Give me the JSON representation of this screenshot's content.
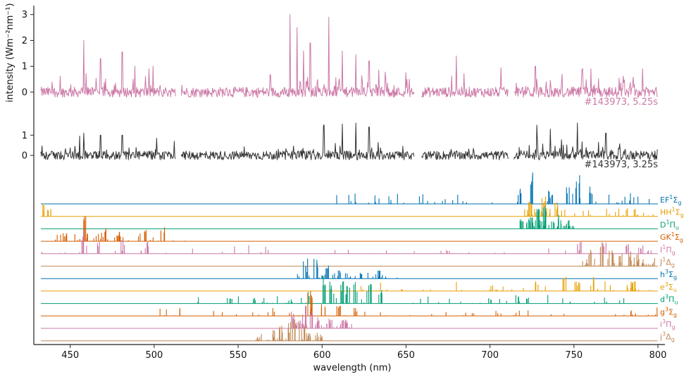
{
  "chart_data": {
    "type": "line",
    "title": "",
    "xlabel": "wavelength (nm)",
    "ylabel": "intensity (Wm⁻²nm⁻¹)",
    "xlim": [
      432,
      805
    ],
    "x_ticks": [
      450,
      500,
      550,
      600,
      650,
      700,
      750,
      800
    ],
    "x_tick_labels": [
      "450",
      "500",
      "550",
      "600",
      "650",
      "700",
      "750",
      "800"
    ],
    "gaps_nm": [
      [
        513,
        516
      ],
      [
        655,
        659
      ],
      [
        711,
        714
      ]
    ],
    "spectra": [
      {
        "label": "#143973, 5.25s",
        "color": "#CC79A7",
        "ylim": [
          -0.6,
          3.4
        ],
        "y_ticks": [
          0,
          1,
          2,
          3
        ],
        "y_tick_labels": [
          "0",
          "1",
          "2",
          "3"
        ],
        "baseline_noise": 0.18,
        "peaks": [
          {
            "x": 458,
            "y": 2.0
          },
          {
            "x": 468,
            "y": 1.3
          },
          {
            "x": 481,
            "y": 1.55
          },
          {
            "x": 497,
            "y": 0.9
          },
          {
            "x": 581,
            "y": 3.0
          },
          {
            "x": 585,
            "y": 2.5
          },
          {
            "x": 589,
            "y": 1.6
          },
          {
            "x": 593,
            "y": 1.9
          },
          {
            "x": 604,
            "y": 2.9
          },
          {
            "x": 612,
            "y": 1.6
          },
          {
            "x": 620,
            "y": 1.45
          },
          {
            "x": 628,
            "y": 1.2
          },
          {
            "x": 680,
            "y": 1.4
          },
          {
            "x": 727,
            "y": 1.0
          },
          {
            "x": 755,
            "y": 0.9
          },
          {
            "x": 760,
            "y": 0.9
          },
          {
            "x": 791,
            "y": 0.9
          }
        ]
      },
      {
        "label": "#143973, 3.25s",
        "color": "#333333",
        "ylim": [
          -0.6,
          1.6
        ],
        "y_ticks": [
          0,
          1
        ],
        "y_tick_labels": [
          "0",
          "1"
        ],
        "baseline_noise": 0.2,
        "peaks": [
          {
            "x": 458,
            "y": 1.1
          },
          {
            "x": 468,
            "y": 1.0
          },
          {
            "x": 481,
            "y": 1.0
          },
          {
            "x": 601,
            "y": 1.5
          },
          {
            "x": 612,
            "y": 1.55
          },
          {
            "x": 620,
            "y": 1.6
          },
          {
            "x": 628,
            "y": 1.4
          },
          {
            "x": 728,
            "y": 1.5
          },
          {
            "x": 736,
            "y": 1.3
          },
          {
            "x": 752,
            "y": 1.6
          },
          {
            "x": 769,
            "y": 1.1
          }
        ]
      }
    ],
    "bands": [
      {
        "label_base": "EF",
        "sup": "1",
        "greek": "Σ",
        "sub": "g",
        "color": "#0072B2",
        "range": [
          585,
          800
        ],
        "strong": [
          [
            724,
            1.0
          ],
          [
            752,
            1.0
          ],
          [
            746,
            0.6
          ],
          [
            718,
            0.5
          ],
          [
            760,
            0.55
          ],
          [
            736,
            0.45
          ]
        ]
      },
      {
        "label_base": "HH",
        "sup": "1",
        "greek": "Σ",
        "sub": "g",
        "color": "#E69F00",
        "range": [
          720,
          800
        ],
        "strong": [
          [
            433,
            0.5
          ],
          [
            437,
            0.4
          ],
          [
            724,
            0.9
          ],
          [
            732,
            0.8
          ],
          [
            740,
            0.6
          ]
        ]
      },
      {
        "label_base": "D",
        "sup": "1",
        "greek": "Π",
        "sub": "u",
        "color": "#009E73",
        "range": [
          718,
          752
        ],
        "strong": [
          [
            733,
            1.0
          ],
          [
            729,
            0.8
          ],
          [
            724,
            0.6
          ],
          [
            742,
            0.55
          ],
          [
            719,
            0.45
          ]
        ]
      },
      {
        "label_base": "GK",
        "sup": "1",
        "greek": "Σ",
        "sub": "g",
        "color": "#D55E00",
        "range": [
          440,
          520
        ],
        "strong": [
          [
            458,
            1.0
          ],
          [
            471,
            0.6
          ],
          [
            495,
            0.5
          ],
          [
            505,
            0.6
          ],
          [
            479,
            0.4
          ],
          [
            447,
            0.35
          ]
        ]
      },
      {
        "label_base": "I",
        "sup": "1",
        "greek": "Π",
        "sub": "g",
        "color": "#CC79A7",
        "range": [
          433,
          800
        ],
        "strong": [
          [
            458,
            1.0
          ],
          [
            467,
            0.6
          ],
          [
            481,
            0.6
          ],
          [
            497,
            0.5
          ],
          [
            753,
            0.55
          ],
          [
            768,
            0.5
          ],
          [
            782,
            0.5
          ],
          [
            790,
            0.4
          ]
        ]
      },
      {
        "label_base": "J",
        "sup": "1",
        "greek": "Δ",
        "sub": "g",
        "color": "#C18A56",
        "range": [
          755,
          800
        ],
        "strong": [
          [
            766,
            1.0
          ],
          [
            772,
            0.95
          ],
          [
            760,
            0.8
          ],
          [
            778,
            0.7
          ],
          [
            784,
            0.6
          ],
          [
            788,
            0.5
          ]
        ]
      },
      {
        "label_base": "h",
        "sup": "3",
        "greek": "Σ",
        "sub": "g",
        "color": "#0072B2",
        "range": [
          584,
          645
        ],
        "strong": [
          [
            590,
            1.0
          ],
          [
            596,
            0.8
          ],
          [
            603,
            0.6
          ],
          [
            611,
            0.4
          ]
        ]
      },
      {
        "label_base": "e",
        "sup": "3",
        "greek": "Σ",
        "sub": "u",
        "color": "#E69F00",
        "range": [
          620,
          800
        ],
        "strong": [
          [
            744,
            0.8
          ],
          [
            763,
            0.6
          ],
          [
            785,
            0.5
          ],
          [
            752,
            0.4
          ],
          [
            728,
            0.35
          ]
        ]
      },
      {
        "label_base": "d",
        "sup": "3",
        "greek": "Π",
        "sub": "u",
        "color": "#009E73",
        "range": [
          525,
          800
        ],
        "strong": [
          [
            601,
            1.0
          ],
          [
            612,
            0.95
          ],
          [
            620,
            0.85
          ],
          [
            628,
            0.75
          ],
          [
            605,
            0.8
          ],
          [
            615,
            0.7
          ],
          [
            592,
            0.5
          ],
          [
            635,
            0.5
          ],
          [
            545,
            0.25
          ],
          [
            560,
            0.22
          ],
          [
            700,
            0.2
          ],
          [
            722,
            0.25
          ]
        ]
      },
      {
        "label_base": "g",
        "sup": "3",
        "greek": "Σ",
        "sub": "g",
        "color": "#D55E00",
        "range": [
          500,
          800
        ],
        "strong": [
          [
            593,
            1.0
          ],
          [
            601,
            0.5
          ],
          [
            610,
            0.45
          ],
          [
            620,
            0.35
          ]
        ]
      },
      {
        "label_base": "i",
        "sup": "3",
        "greek": "Π",
        "sub": "g",
        "color": "#CC79A7",
        "range": [
          575,
          620
        ],
        "strong": [
          [
            589,
            1.0
          ],
          [
            583,
            0.8
          ],
          [
            593,
            0.7
          ],
          [
            597,
            0.5
          ],
          [
            605,
            0.4
          ]
        ]
      },
      {
        "label_base": "j",
        "sup": "3",
        "greek": "Δ",
        "sub": "g",
        "color": "#C18A56",
        "range": [
          560,
          600
        ],
        "strong": [
          [
            581,
            1.0
          ],
          [
            585,
            0.9
          ],
          [
            576,
            0.7
          ],
          [
            589,
            0.6
          ],
          [
            571,
            0.45
          ],
          [
            593,
            0.3
          ]
        ]
      }
    ]
  }
}
